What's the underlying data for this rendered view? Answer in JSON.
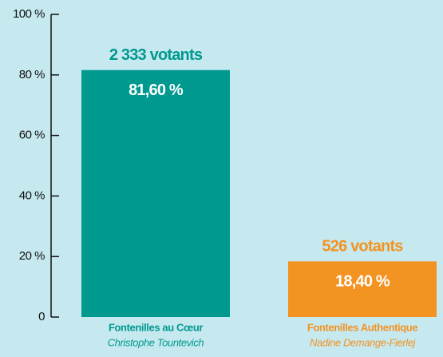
{
  "chart_data": {
    "type": "bar",
    "categories": [
      "Fontenilles au Cœur",
      "Fontenilles Authentique"
    ],
    "subtitles": [
      "Christophe Tountevich",
      "Nadine Demange-Fierlej"
    ],
    "values": [
      81.6,
      18.4
    ],
    "value_labels": [
      "81,60 %",
      "18,40 %"
    ],
    "vote_labels": [
      "2 333 votants",
      "526 votants"
    ],
    "colors": [
      "#00998f",
      "#f39322"
    ],
    "ylim": [
      0,
      100
    ],
    "yticks": [
      0,
      {
        "value": 20,
        "label": "20 %"
      },
      {
        "value": 40,
        "label": "40 %"
      },
      {
        "value": 60,
        "label": "60 %"
      },
      {
        "value": 80,
        "label": "80 %"
      },
      {
        "value": 100,
        "label": "100 %"
      }
    ]
  }
}
